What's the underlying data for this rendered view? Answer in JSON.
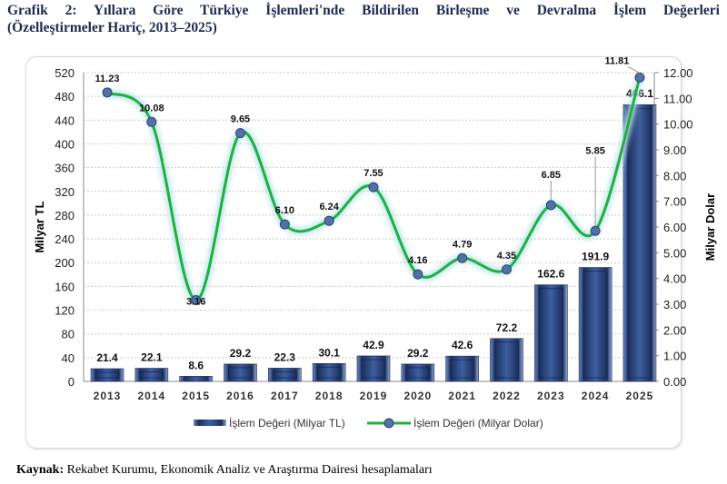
{
  "title_line1": "Grafik 2: Yıllara Göre Türkiye İşlemleri'nde Bildirilen Birleşme ve Devralma İşlem Değerleri",
  "title_line2": "(Özelleştirmeler Hariç, 2013–2025)",
  "source_label": "Kaynak:",
  "source_text": " Rekabet Kurumu, Ekonomik Analiz ve Araştırma Dairesi hesaplamaları",
  "chart_data": {
    "type": "bar+line",
    "categories": [
      "2013",
      "2014",
      "2015",
      "2016",
      "2017",
      "2018",
      "2019",
      "2020",
      "2021",
      "2022",
      "2023",
      "2024",
      "2025"
    ],
    "series": [
      {
        "name": "İşlem Değeri (Milyar TL)",
        "type": "bar",
        "axis": "left",
        "color": "#2f4f8f",
        "values": [
          21.4,
          22.1,
          8.6,
          29.2,
          22.3,
          30.1,
          42.9,
          29.2,
          42.6,
          72.2,
          162.6,
          191.9,
          466.1
        ],
        "labels": [
          "21.4",
          "22.1",
          "8.6",
          "29.2",
          "22.3",
          "30.1",
          "42.9",
          "29.2",
          "42.6",
          "72.2",
          "162.6",
          "191.9",
          "466.1"
        ]
      },
      {
        "name": "İşlem Değeri (Milyar Dolar)",
        "type": "line",
        "axis": "right",
        "color": "#1db33a",
        "values": [
          11.23,
          10.08,
          3.16,
          9.65,
          6.1,
          6.24,
          7.55,
          4.16,
          4.79,
          4.35,
          6.85,
          5.85,
          11.81
        ],
        "labels": [
          "11.23",
          "10.08",
          "3.16",
          "9.65",
          "6.10",
          "6.24",
          "7.55",
          "4.16",
          "4.79",
          "4.35",
          "6.85",
          "5.85",
          "11.81"
        ]
      }
    ],
    "ylabel_left": "Milyar TL",
    "ylabel_right": "Milyar Dolar",
    "ylim_left": [
      0,
      520
    ],
    "yticks_left": [
      "0",
      "40",
      "80",
      "120",
      "160",
      "200",
      "240",
      "280",
      "320",
      "360",
      "400",
      "440",
      "480",
      "520"
    ],
    "ylim_right": [
      0,
      12
    ],
    "yticks_right": [
      "0.00",
      "1.00",
      "2.00",
      "3.00",
      "4.00",
      "5.00",
      "6.00",
      "7.00",
      "8.00",
      "9.00",
      "10.00",
      "11.00",
      "12.00"
    ],
    "grid": true,
    "legend": "bottom"
  }
}
